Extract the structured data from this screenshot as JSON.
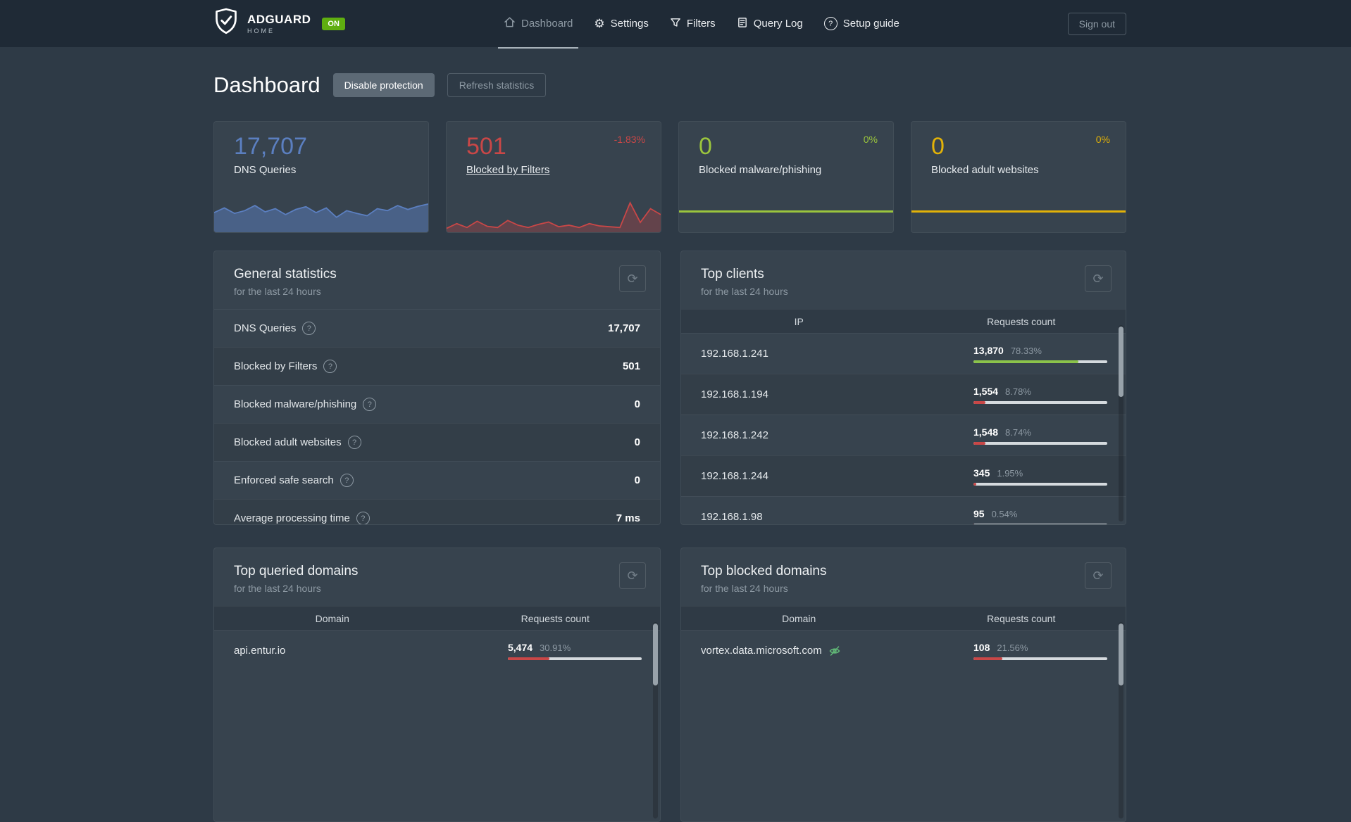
{
  "navbar": {
    "brand": {
      "name": "ADGUARD",
      "sub": "HOME",
      "status": "ON"
    },
    "items": [
      {
        "label": "Dashboard",
        "icon": "home-icon",
        "active": true
      },
      {
        "label": "Settings",
        "icon": "gear-icon",
        "active": false
      },
      {
        "label": "Filters",
        "icon": "funnel-icon",
        "active": false
      },
      {
        "label": "Query Log",
        "icon": "document-icon",
        "active": false
      },
      {
        "label": "Setup guide",
        "icon": "help-circle-icon",
        "active": false
      }
    ],
    "sign_out": "Sign out"
  },
  "page": {
    "title": "Dashboard",
    "disable_protection": "Disable protection",
    "refresh_statistics": "Refresh statistics"
  },
  "stat_cards": [
    {
      "value": "17,707",
      "label": "DNS Queries",
      "delta": "",
      "color": "#5b7fc0",
      "fill_opacity": 0.5,
      "spark": [
        0.5,
        0.62,
        0.48,
        0.55,
        0.68,
        0.52,
        0.6,
        0.45,
        0.58,
        0.65,
        0.5,
        0.62,
        0.38,
        0.55,
        0.48,
        0.42,
        0.6,
        0.55,
        0.68,
        0.58,
        0.66,
        0.72
      ]
    },
    {
      "value": "501",
      "label": "Blocked by Filters",
      "delta": "-1.83%",
      "color": "#c94747",
      "fill_opacity": 0.3,
      "link": true,
      "spark": [
        0.1,
        0.22,
        0.12,
        0.28,
        0.15,
        0.12,
        0.3,
        0.18,
        0.12,
        0.2,
        0.26,
        0.14,
        0.18,
        0.12,
        0.22,
        0.16,
        0.14,
        0.12,
        0.75,
        0.25,
        0.6,
        0.45
      ]
    },
    {
      "value": "0",
      "label": "Blocked malware/phishing",
      "delta": "0%",
      "color": "#9bc53d",
      "flat": true
    },
    {
      "value": "0",
      "label": "Blocked adult websites",
      "delta": "0%",
      "color": "#e2b208",
      "flat": true
    }
  ],
  "general_statistics": {
    "title": "General statistics",
    "subtitle": "for the last 24 hours",
    "rows": [
      {
        "label": "DNS Queries",
        "value": "17,707"
      },
      {
        "label": "Blocked by Filters",
        "value": "501"
      },
      {
        "label": "Blocked malware/phishing",
        "value": "0"
      },
      {
        "label": "Blocked adult websites",
        "value": "0"
      },
      {
        "label": "Enforced safe search",
        "value": "0"
      },
      {
        "label": "Average processing time",
        "value": "7 ms"
      }
    ]
  },
  "top_clients": {
    "title": "Top clients",
    "subtitle": "for the last 24 hours",
    "columns": [
      "IP",
      "Requests count"
    ],
    "rows": [
      {
        "name": "192.168.1.241",
        "count": "13,870",
        "percent": "78.33%",
        "bar": 78.33,
        "bar_color": "#8bc34a",
        "tracker": false
      },
      {
        "name": "192.168.1.194",
        "count": "1,554",
        "percent": "8.78%",
        "bar": 8.78,
        "bar_color": "#c94747",
        "tracker": false
      },
      {
        "name": "192.168.1.242",
        "count": "1,548",
        "percent": "8.74%",
        "bar": 8.74,
        "bar_color": "#c94747",
        "tracker": false
      },
      {
        "name": "192.168.1.244",
        "count": "345",
        "percent": "1.95%",
        "bar": 1.95,
        "bar_color": "#c94747",
        "tracker": false
      },
      {
        "name": "192.168.1.98",
        "count": "95",
        "percent": "0.54%",
        "bar": 0.54,
        "bar_color": "#c94747",
        "tracker": false
      }
    ]
  },
  "top_queried_domains": {
    "title": "Top queried domains",
    "subtitle": "for the last 24 hours",
    "columns": [
      "Domain",
      "Requests count"
    ],
    "rows": [
      {
        "name": "api.entur.io",
        "count": "5,474",
        "percent": "30.91%",
        "bar": 30.91,
        "bar_color": "#c94747",
        "tracker": false
      }
    ]
  },
  "top_blocked_domains": {
    "title": "Top blocked domains",
    "subtitle": "for the last 24 hours",
    "columns": [
      "Domain",
      "Requests count"
    ],
    "rows": [
      {
        "name": "vortex.data.microsoft.com",
        "count": "108",
        "percent": "21.56%",
        "bar": 21.56,
        "bar_color": "#c94747",
        "tracker": true
      }
    ]
  }
}
